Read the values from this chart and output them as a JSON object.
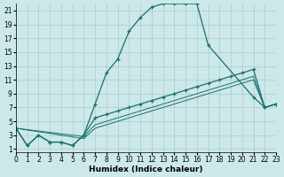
{
  "xlabel": "Humidex (Indice chaleur)",
  "bg_color": "#cce8e8",
  "grid_color": "#aacccc",
  "line_color": "#1a7070",
  "xlim": [
    0,
    23
  ],
  "ylim": [
    0.5,
    22
  ],
  "xticks": [
    0,
    1,
    2,
    3,
    4,
    5,
    6,
    7,
    8,
    9,
    10,
    11,
    12,
    13,
    14,
    15,
    16,
    17,
    18,
    19,
    20,
    21,
    22,
    23
  ],
  "yticks": [
    1,
    3,
    5,
    7,
    9,
    11,
    13,
    15,
    17,
    19,
    21
  ],
  "curve1_x": [
    0,
    1,
    2,
    3,
    4,
    5,
    6,
    7,
    8,
    9,
    10,
    11,
    12,
    13,
    14,
    15,
    16,
    17,
    21,
    22,
    23
  ],
  "curve1_y": [
    4,
    1.5,
    3,
    2,
    2,
    1.5,
    3,
    7.5,
    12,
    14,
    18,
    20,
    21.5,
    22,
    22,
    22,
    22,
    16,
    8.5,
    7,
    7.5
  ],
  "curve2_x": [
    0,
    1,
    2,
    3,
    4,
    5,
    6,
    7,
    8,
    9,
    10,
    11,
    12,
    13,
    14,
    15,
    16,
    17,
    18,
    19,
    20,
    21,
    22,
    23
  ],
  "curve2_y": [
    4,
    1.5,
    3,
    2,
    2,
    1.5,
    3,
    5.5,
    6,
    6.5,
    7,
    7.5,
    8,
    8.5,
    9,
    9.5,
    10,
    10.5,
    11,
    11.5,
    12,
    12.5,
    7,
    7.5
  ],
  "curve3_x": [
    0,
    6,
    7,
    8,
    9,
    10,
    11,
    12,
    13,
    14,
    15,
    16,
    17,
    18,
    19,
    20,
    21,
    22,
    23
  ],
  "curve3_y": [
    4,
    2.8,
    4.5,
    5,
    5.5,
    6,
    6.5,
    7,
    7.5,
    8,
    8.5,
    9,
    9.5,
    10,
    10.5,
    11,
    11.5,
    7,
    7.5
  ],
  "curve4_x": [
    0,
    6,
    7,
    8,
    9,
    10,
    11,
    12,
    13,
    14,
    15,
    16,
    17,
    18,
    19,
    20,
    21,
    22,
    23
  ],
  "curve4_y": [
    4,
    2.5,
    4,
    4.5,
    5,
    5.5,
    6,
    6.5,
    7,
    7.5,
    8,
    8.5,
    9,
    9.5,
    10,
    10.5,
    11,
    7,
    7.5
  ]
}
